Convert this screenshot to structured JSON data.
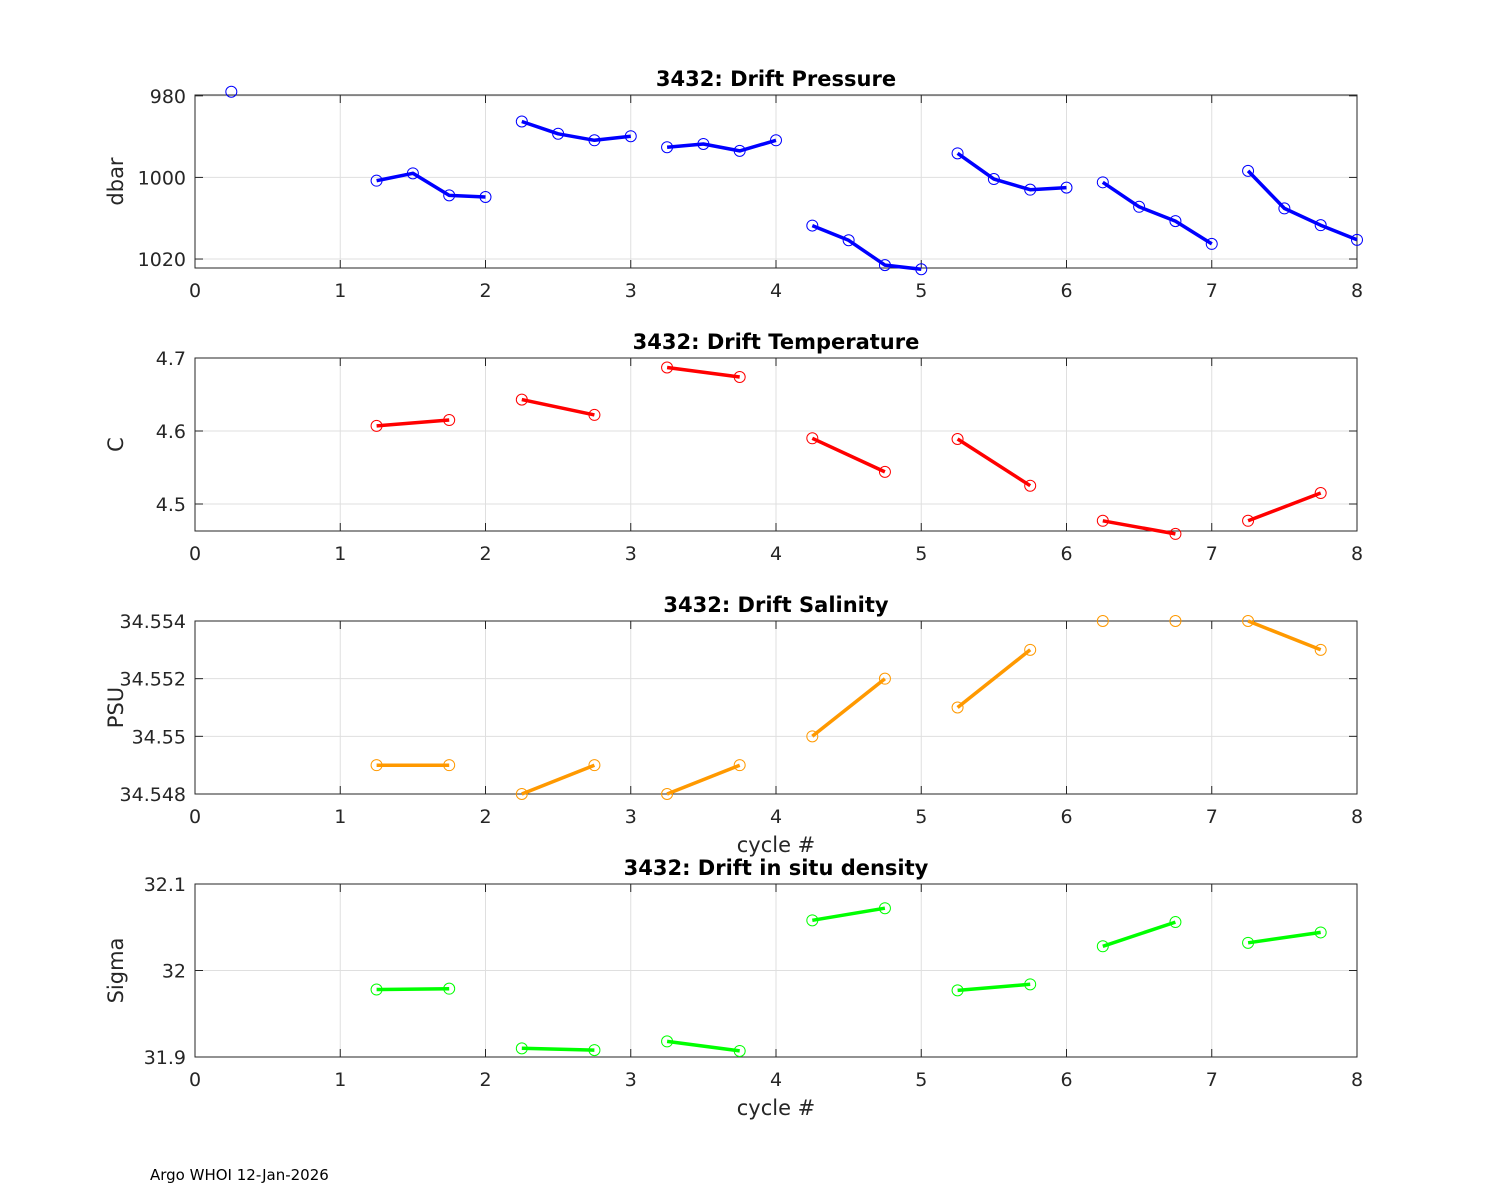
{
  "footer": "Argo WHOI 12-Jan-2026",
  "chart_data": [
    {
      "type": "line",
      "title": "3432: Drift Pressure",
      "ylabel": "dbar",
      "xlabel": "",
      "color": "#0000ff",
      "xlim": [
        0,
        8
      ],
      "ylim": [
        1022.2,
        979.8
      ],
      "reversed_y": true,
      "xticks": [
        0,
        1,
        2,
        3,
        4,
        5,
        6,
        7,
        8
      ],
      "yticks": [
        980,
        1000,
        1020
      ],
      "ytick_labels": [
        "980",
        "1000",
        "1020"
      ],
      "grid": true,
      "segments": [
        [
          [
            0.25,
            979.0
          ]
        ],
        [
          [
            1.25,
            1000.8
          ],
          [
            1.5,
            999.0
          ],
          [
            1.75,
            1004.4
          ],
          [
            2.0,
            1004.8
          ]
        ],
        [
          [
            2.25,
            986.3
          ],
          [
            2.5,
            989.3
          ],
          [
            2.75,
            990.9
          ],
          [
            3.0,
            989.9
          ]
        ],
        [
          [
            3.25,
            992.6
          ],
          [
            3.5,
            991.8
          ],
          [
            3.75,
            993.5
          ],
          [
            4.0,
            990.9
          ]
        ],
        [
          [
            4.25,
            1011.8
          ],
          [
            4.5,
            1015.4
          ],
          [
            4.75,
            1021.5
          ],
          [
            5.0,
            1022.5
          ]
        ],
        [
          [
            5.25,
            994.1
          ],
          [
            5.5,
            1000.4
          ],
          [
            5.75,
            1003.0
          ],
          [
            6.0,
            1002.5
          ]
        ],
        [
          [
            6.25,
            1001.2
          ],
          [
            6.5,
            1007.2
          ],
          [
            6.75,
            1010.7
          ],
          [
            7.0,
            1016.3
          ]
        ],
        [
          [
            7.25,
            998.4
          ],
          [
            7.5,
            1007.6
          ],
          [
            7.75,
            1011.7
          ],
          [
            8.0,
            1015.3
          ]
        ]
      ]
    },
    {
      "type": "line",
      "title": "3432: Drift Temperature",
      "ylabel": "C",
      "xlabel": "",
      "color": "#ff0000",
      "xlim": [
        0,
        8
      ],
      "ylim": [
        4.463,
        4.7
      ],
      "reversed_y": false,
      "xticks": [
        0,
        1,
        2,
        3,
        4,
        5,
        6,
        7,
        8
      ],
      "yticks": [
        4.5,
        4.6,
        4.7
      ],
      "ytick_labels": [
        "4.5",
        "4.6",
        "4.7"
      ],
      "grid": true,
      "segments": [
        [
          [
            1.25,
            4.607
          ],
          [
            1.75,
            4.615
          ]
        ],
        [
          [
            2.25,
            4.643
          ],
          [
            2.75,
            4.622
          ]
        ],
        [
          [
            3.25,
            4.687
          ],
          [
            3.75,
            4.674
          ]
        ],
        [
          [
            4.25,
            4.59
          ],
          [
            4.75,
            4.544
          ]
        ],
        [
          [
            5.25,
            4.589
          ],
          [
            5.75,
            4.525
          ]
        ],
        [
          [
            6.25,
            4.477
          ],
          [
            6.75,
            4.459
          ]
        ],
        [
          [
            7.25,
            4.477
          ],
          [
            7.75,
            4.515
          ]
        ]
      ]
    },
    {
      "type": "line",
      "title": "3432: Drift Salinity",
      "ylabel": "PSU",
      "xlabel": "cycle #",
      "color": "#ff9900",
      "xlim": [
        0,
        8
      ],
      "ylim": [
        34.548,
        34.554
      ],
      "reversed_y": false,
      "xticks": [
        0,
        1,
        2,
        3,
        4,
        5,
        6,
        7,
        8
      ],
      "yticks": [
        34.548,
        34.55,
        34.552,
        34.554
      ],
      "ytick_labels": [
        "34.548",
        "34.55",
        "34.552",
        "34.554"
      ],
      "grid": true,
      "segments": [
        [
          [
            1.25,
            34.549
          ],
          [
            1.75,
            34.549
          ]
        ],
        [
          [
            2.25,
            34.548
          ],
          [
            2.75,
            34.549
          ]
        ],
        [
          [
            3.25,
            34.548
          ],
          [
            3.75,
            34.549
          ]
        ],
        [
          [
            4.25,
            34.55
          ],
          [
            4.75,
            34.552
          ]
        ],
        [
          [
            5.25,
            34.551
          ],
          [
            5.75,
            34.553
          ]
        ],
        [
          [
            6.25,
            34.554
          ]
        ],
        [
          [
            6.75,
            34.554
          ]
        ],
        [
          [
            7.25,
            34.554
          ],
          [
            7.75,
            34.553
          ]
        ]
      ]
    },
    {
      "type": "line",
      "title": "3432: Drift in situ density",
      "ylabel": "Sigma",
      "xlabel": "cycle #",
      "color": "#00ff00",
      "xlim": [
        0,
        8
      ],
      "ylim": [
        31.9,
        32.1
      ],
      "reversed_y": false,
      "xticks": [
        0,
        1,
        2,
        3,
        4,
        5,
        6,
        7,
        8
      ],
      "yticks": [
        31.9,
        32.0,
        32.1
      ],
      "ytick_labels": [
        "31.9",
        "32",
        "32.1"
      ],
      "grid": true,
      "segments": [
        [
          [
            1.25,
            31.978
          ],
          [
            1.75,
            31.979
          ]
        ],
        [
          [
            2.25,
            31.91
          ],
          [
            2.75,
            31.908
          ]
        ],
        [
          [
            3.25,
            31.918
          ],
          [
            3.75,
            31.907
          ]
        ],
        [
          [
            4.25,
            32.058
          ],
          [
            4.75,
            32.072
          ]
        ],
        [
          [
            5.25,
            31.977
          ],
          [
            5.75,
            31.984
          ]
        ],
        [
          [
            6.25,
            32.028
          ],
          [
            6.75,
            32.056
          ]
        ],
        [
          [
            7.25,
            32.032
          ],
          [
            7.75,
            32.044
          ]
        ]
      ]
    }
  ]
}
